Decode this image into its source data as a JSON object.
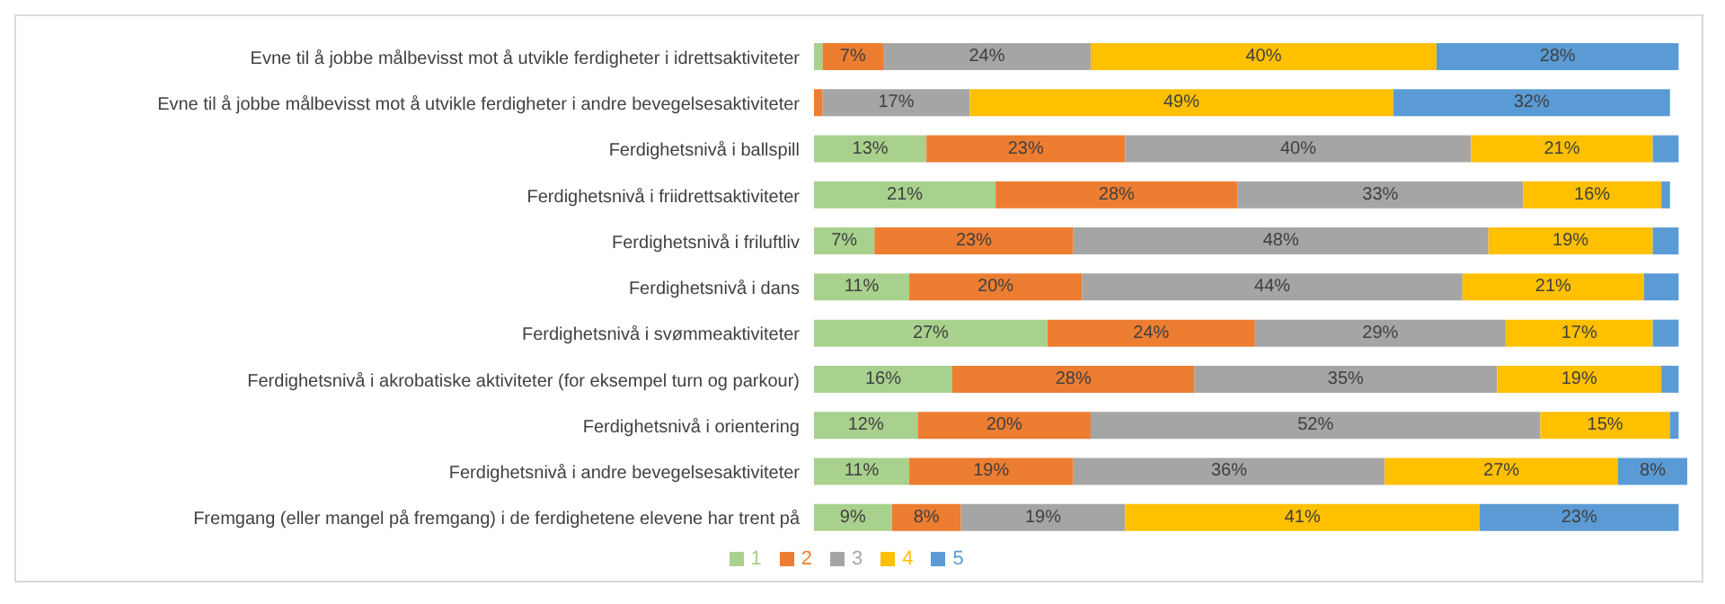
{
  "chart_data": {
    "type": "bar",
    "orientation": "horizontal",
    "stacked": true,
    "categories": [
      "Evne til å jobbe målbevisst mot å utvikle ferdigheter i idrettsaktiviteter",
      "Evne til å jobbe målbevisst mot å utvikle ferdigheter i andre bevegelsesaktiviteter",
      "Ferdighetsnivå i ballspill",
      "Ferdighetsnivå i friidrettsaktiviteter",
      "Ferdighetsnivå i friluftliv",
      "Ferdighetsnivå i dans",
      "Ferdighetsnivå i svømmeaktiviteter",
      "Ferdighetsnivå i akrobatiske aktiviteter (for eksempel turn og parkour)",
      "Ferdighetsnivå i orientering",
      "Ferdighetsnivå i andre bevegelsesaktiviteter",
      "Fremgang (eller mangel på fremgang) i de ferdighetene elevene har trent på"
    ],
    "series": [
      {
        "name": "1",
        "color": "#a9d18e",
        "values": [
          1,
          null,
          13,
          21,
          7,
          11,
          27,
          16,
          12,
          11,
          9
        ],
        "value_labels": [
          null,
          null,
          "13%",
          "21%",
          "7%",
          "11%",
          "27%",
          "16%",
          "12%",
          "11%",
          "9%"
        ]
      },
      {
        "name": "2",
        "color": "#ed7d31",
        "values": [
          7,
          1,
          23,
          28,
          23,
          20,
          24,
          28,
          20,
          19,
          8
        ],
        "value_labels": [
          "7%",
          null,
          "23%",
          "28%",
          "23%",
          "20%",
          "24%",
          "28%",
          "20%",
          "19%",
          "8%"
        ]
      },
      {
        "name": "3",
        "color": "#a5a5a5",
        "values": [
          24,
          17,
          40,
          33,
          48,
          44,
          29,
          35,
          52,
          36,
          19
        ],
        "value_labels": [
          "24%",
          "17%",
          "40%",
          "33%",
          "48%",
          "44%",
          "29%",
          "35%",
          "52%",
          "36%",
          "19%"
        ]
      },
      {
        "name": "4",
        "color": "#ffc000",
        "values": [
          40,
          49,
          21,
          16,
          19,
          21,
          17,
          19,
          15,
          27,
          41
        ],
        "value_labels": [
          "40%",
          "49%",
          "21%",
          "16%",
          "19%",
          "21%",
          "17%",
          "19%",
          "15%",
          "27%",
          "41%"
        ]
      },
      {
        "name": "5",
        "color": "#5b9bd5",
        "values": [
          28,
          32,
          3,
          1,
          3,
          4,
          3,
          2,
          1,
          8,
          23
        ],
        "value_labels": [
          "28%",
          "32%",
          null,
          null,
          null,
          null,
          null,
          null,
          null,
          "8%",
          "23%"
        ]
      }
    ],
    "tick_labels": "y",
    "legend": "bottom"
  }
}
